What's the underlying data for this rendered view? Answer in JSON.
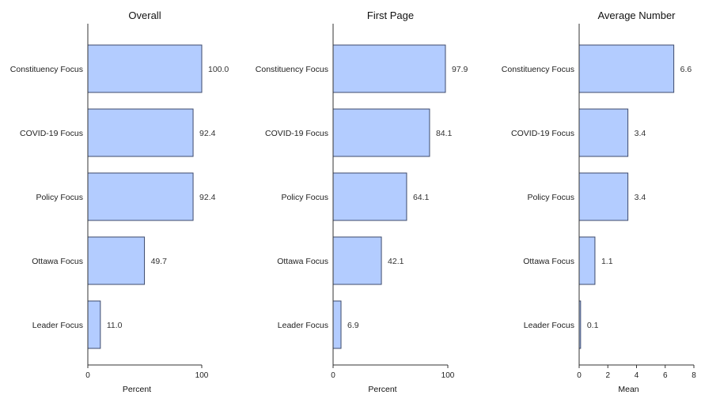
{
  "colors": {
    "bar_fill": "#b3ccff",
    "bar_stroke": "#3d4a6b",
    "axis": "#333333"
  },
  "chart_data": [
    {
      "type": "bar",
      "orientation": "horizontal",
      "title": "Overall",
      "xlabel": "Percent",
      "categories": [
        "Constituency Focus",
        "COVID-19 Focus",
        "Policy Focus",
        "Ottawa Focus",
        "Leader Focus"
      ],
      "values": [
        100.0,
        92.4,
        92.4,
        49.7,
        11.0
      ],
      "value_labels": [
        "100.0",
        "92.4",
        "92.4",
        "49.7",
        "11.0"
      ],
      "xlim": [
        0,
        100
      ],
      "xticks": [
        0,
        100
      ],
      "grid": false
    },
    {
      "type": "bar",
      "orientation": "horizontal",
      "title": "First Page",
      "xlabel": "Percent",
      "categories": [
        "Constituency Focus",
        "COVID-19 Focus",
        "Policy Focus",
        "Ottawa Focus",
        "Leader Focus"
      ],
      "values": [
        97.9,
        84.1,
        64.1,
        42.1,
        6.9
      ],
      "value_labels": [
        "97.9",
        "84.1",
        "64.1",
        "42.1",
        "6.9"
      ],
      "xlim": [
        0,
        100
      ],
      "xticks": [
        0,
        100
      ],
      "grid": false
    },
    {
      "type": "bar",
      "orientation": "horizontal",
      "title": "Average Number",
      "xlabel": "Mean",
      "categories": [
        "Constituency Focus",
        "COVID-19 Focus",
        "Policy Focus",
        "Ottawa Focus",
        "Leader Focus"
      ],
      "values": [
        6.6,
        3.4,
        3.4,
        1.1,
        0.1
      ],
      "value_labels": [
        "6.6",
        "3.4",
        "3.4",
        "1.1",
        "0.1"
      ],
      "xlim": [
        0,
        8
      ],
      "xticks": [
        0,
        2,
        4,
        6,
        8
      ],
      "grid": false
    }
  ]
}
